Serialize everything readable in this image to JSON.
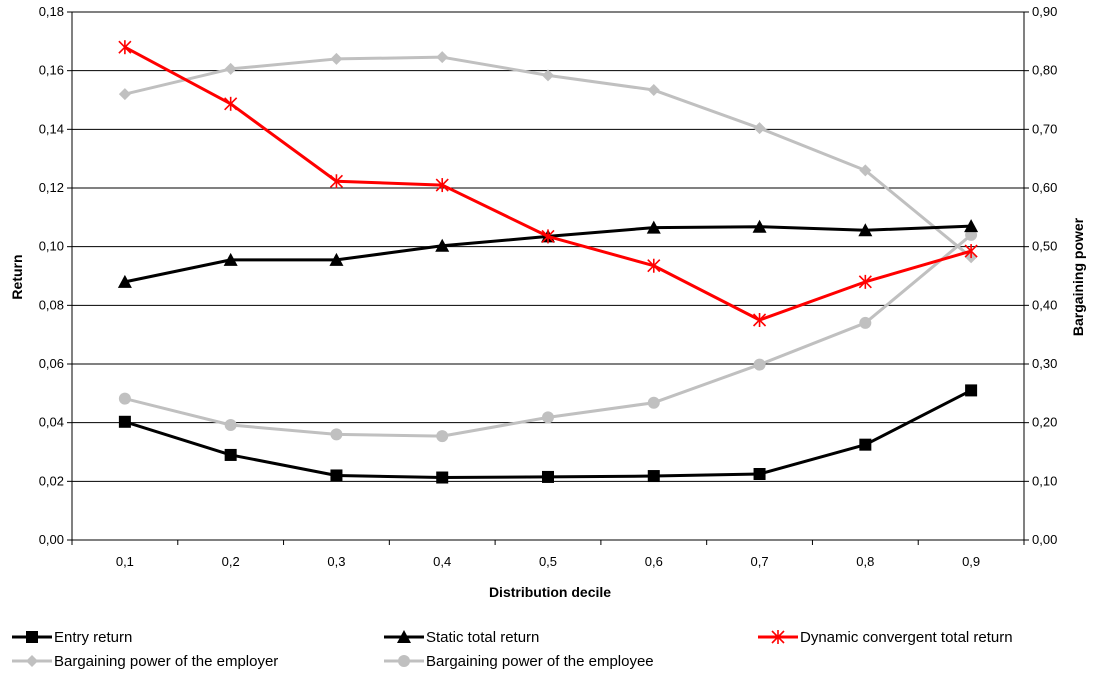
{
  "chart_data": {
    "type": "line",
    "categories": [
      "0,1",
      "0,2",
      "0,3",
      "0,4",
      "0,5",
      "0,6",
      "0,7",
      "0,8",
      "0,9"
    ],
    "xlabel": "Distribution decile",
    "ylabel": "Return",
    "y2label": "Bargaining power",
    "ylim": [
      0,
      0.18
    ],
    "y2lim": [
      0,
      0.9
    ],
    "yticks": [
      "0,00",
      "0,02",
      "0,04",
      "0,06",
      "0,08",
      "0,10",
      "0,12",
      "0,14",
      "0,16",
      "0,18"
    ],
    "y2ticks": [
      "0,00",
      "0,10",
      "0,20",
      "0,30",
      "0,40",
      "0,50",
      "0,60",
      "0,70",
      "0,80",
      "0,90"
    ],
    "grid": true,
    "legend_position": "bottom",
    "series": [
      {
        "name": "Entry return",
        "axis": "left",
        "color": "#000000",
        "marker": "square",
        "values": [
          0.0403,
          0.029,
          0.022,
          0.0213,
          0.0215,
          0.0218,
          0.0225,
          0.0325,
          0.051
        ]
      },
      {
        "name": "Static total return",
        "axis": "left",
        "color": "#000000",
        "marker": "triangle",
        "values": [
          0.088,
          0.0955,
          0.0955,
          0.1003,
          0.1035,
          0.1065,
          0.1068,
          0.1056,
          0.107
        ]
      },
      {
        "name": "Dynamic convergent total return",
        "axis": "left",
        "color": "#ff0000",
        "marker": "asterisk",
        "values": [
          0.168,
          0.1487,
          0.1223,
          0.121,
          0.1035,
          0.0935,
          0.075,
          0.088,
          0.0985
        ]
      },
      {
        "name": "Bargaining power of the employer",
        "axis": "right",
        "color": "#c0c0c0",
        "marker": "diamond",
        "values": [
          0.76,
          0.803,
          0.82,
          0.823,
          0.792,
          0.767,
          0.702,
          0.63,
          0.482
        ]
      },
      {
        "name": "Bargaining power of the employee",
        "axis": "right",
        "color": "#c0c0c0",
        "marker": "circle",
        "values": [
          0.241,
          0.196,
          0.18,
          0.177,
          0.209,
          0.234,
          0.299,
          0.37,
          0.52
        ]
      }
    ]
  }
}
